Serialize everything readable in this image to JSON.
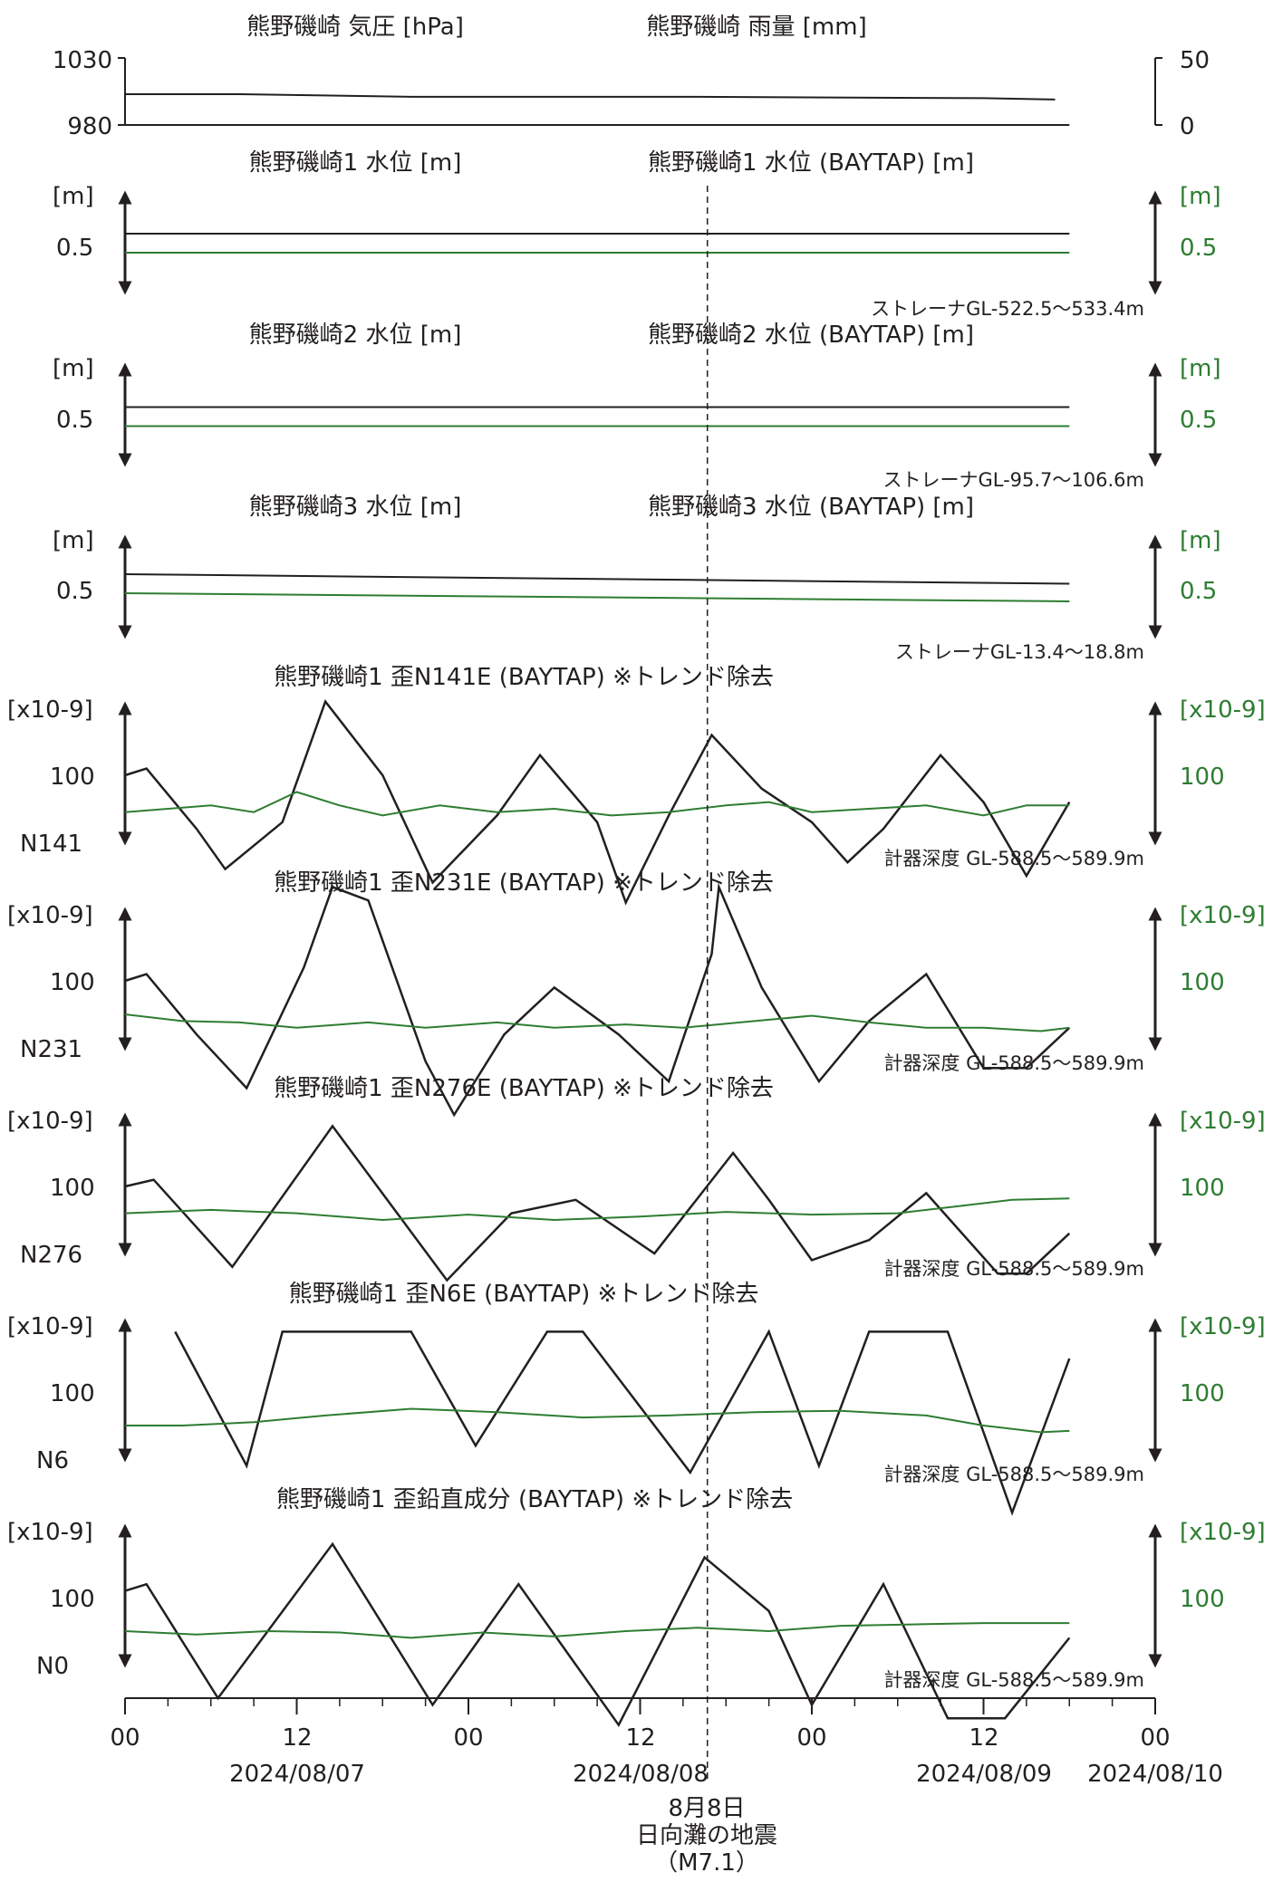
{
  "colors": {
    "black": "#231f20",
    "green": "#2e7d32"
  },
  "chart_data": [
    {
      "type": "line",
      "title": "熊野磯崎 気圧 [hPa]",
      "title_right": "熊野磯崎 雨量 [mm]",
      "left_ticks": [
        "1030",
        "980"
      ],
      "right_ticks": [
        "50",
        "0"
      ],
      "ylim_left": [
        980,
        1030
      ],
      "ylim_right": [
        0,
        50
      ],
      "series": [
        {
          "name": "熊野磯崎 気圧 [hPa]",
          "color": "#231f20",
          "x": [
            0,
            8,
            20,
            40,
            60,
            65
          ],
          "y": [
            1003,
            1003,
            1001,
            1001,
            1000,
            999
          ]
        },
        {
          "name": "熊野磯崎 雨量 [mm]",
          "color": "#231f20",
          "x": [
            0,
            66
          ],
          "y": [
            0,
            0
          ]
        }
      ]
    },
    {
      "type": "line",
      "title": "熊野磯崎1 水位 [m]",
      "title_right": "熊野磯崎1 水位 (BAYTAP) [m]",
      "unit": "[m]",
      "tick": "0.5",
      "note": "ストレーナGL-522.5～533.4m",
      "series": [
        {
          "color": "#231f20",
          "x": [
            0,
            66
          ],
          "y": [
            0.6,
            0.6
          ]
        },
        {
          "color": "#2e7d32",
          "x": [
            0,
            66
          ],
          "y": [
            0.46,
            0.46
          ]
        }
      ]
    },
    {
      "type": "line",
      "title": "熊野磯崎2 水位 [m]",
      "title_right": "熊野磯崎2 水位 (BAYTAP) [m]",
      "unit": "[m]",
      "tick": "0.5",
      "note": "ストレーナGL-95.7～106.6m",
      "series": [
        {
          "color": "#231f20",
          "x": [
            0,
            66
          ],
          "y": [
            0.59,
            0.59
          ]
        },
        {
          "color": "#2e7d32",
          "x": [
            0,
            66
          ],
          "y": [
            0.45,
            0.45
          ]
        }
      ]
    },
    {
      "type": "line",
      "title": "熊野磯崎3 水位 [m]",
      "title_right": "熊野磯崎3 水位 (BAYTAP) [m]",
      "unit": "[m]",
      "tick": "0.5",
      "note": "ストレーナGL-13.4～18.8m",
      "series": [
        {
          "color": "#231f20",
          "x": [
            0,
            66
          ],
          "y": [
            0.62,
            0.55
          ]
        },
        {
          "color": "#2e7d32",
          "x": [
            0,
            66
          ],
          "y": [
            0.48,
            0.42
          ]
        }
      ]
    },
    {
      "type": "line",
      "title": "熊野磯崎1 歪N141E (BAYTAP) ※トレンド除去",
      "unit": "[x10-9]",
      "tick": "100",
      "component": "N141",
      "note": "計器深度 GL-588.5～589.9m",
      "series": [
        {
          "color": "#231f20",
          "x": [
            0,
            1.5,
            5,
            7,
            11,
            14,
            18,
            21.5,
            26,
            29,
            33,
            35,
            38,
            41,
            44.5,
            48,
            50.5,
            53,
            57,
            60,
            63,
            66
          ],
          "y": [
            100,
            110,
            20,
            -40,
            30,
            210,
            100,
            -60,
            40,
            130,
            30,
            -90,
            40,
            160,
            80,
            30,
            -30,
            20,
            130,
            60,
            -50,
            60
          ]
        },
        {
          "color": "#2e7d32",
          "x": [
            0,
            6,
            9,
            12,
            15,
            18,
            22,
            26,
            30,
            34,
            38,
            42,
            45,
            48,
            52,
            56,
            60,
            63,
            66
          ],
          "y": [
            45,
            55,
            45,
            75,
            55,
            40,
            55,
            45,
            50,
            40,
            45,
            55,
            60,
            45,
            50,
            55,
            40,
            55,
            55
          ]
        }
      ]
    },
    {
      "type": "line",
      "title": "熊野磯崎1 歪N231E (BAYTAP) ※トレンド除去",
      "unit": "[x10-9]",
      "tick": "100",
      "component": "N231",
      "note": "計器深度 GL-588.5～589.9m",
      "series": [
        {
          "color": "#231f20",
          "x": [
            0,
            1.5,
            5,
            8.5,
            12.5,
            14.5,
            15,
            17,
            21,
            23,
            26.5,
            30,
            34.5,
            38,
            41,
            41.5,
            44.5,
            48.5,
            52,
            56,
            60,
            63,
            66
          ],
          "y": [
            100,
            110,
            20,
            -60,
            120,
            240,
            null,
            220,
            -20,
            -100,
            20,
            90,
            20,
            -50,
            140,
            240,
            90,
            -50,
            40,
            110,
            -30,
            -30,
            30
          ]
        },
        {
          "color": "#2e7d32",
          "x": [
            0,
            4,
            8,
            12,
            17,
            21,
            26,
            30,
            35,
            39,
            44,
            48,
            52,
            56,
            60,
            64,
            66
          ],
          "y": [
            50,
            40,
            38,
            30,
            38,
            30,
            38,
            30,
            35,
            30,
            40,
            48,
            38,
            30,
            30,
            25,
            30
          ]
        }
      ]
    },
    {
      "type": "line",
      "title": "熊野磯崎1 歪N276E (BAYTAP) ※トレンド除去",
      "unit": "[x10-9]",
      "tick": "100",
      "component": "N276",
      "note": "計器深度 GL-588.5～589.9m",
      "series": [
        {
          "color": "#231f20",
          "x": [
            0,
            2,
            7.5,
            14.5,
            22.5,
            27,
            31.5,
            37,
            42.5,
            45,
            48,
            52,
            56,
            61,
            63,
            66
          ],
          "y": [
            100,
            110,
            -20,
            190,
            -40,
            60,
            80,
            0,
            150,
            80,
            -10,
            20,
            90,
            -30,
            -30,
            30
          ]
        },
        {
          "color": "#2e7d32",
          "x": [
            0,
            6,
            12,
            18,
            24,
            30,
            36,
            42,
            48,
            54,
            58,
            62,
            66
          ],
          "y": [
            60,
            65,
            60,
            50,
            58,
            50,
            55,
            62,
            58,
            60,
            70,
            80,
            82
          ]
        }
      ]
    },
    {
      "type": "line",
      "title": "熊野磯崎1 歪N6E (BAYTAP) ※トレンド除去",
      "unit": "[x10-9]",
      "tick": "100",
      "component": "N6",
      "note": "計器深度 GL-588.5～589.9m",
      "series": [
        {
          "color": "#231f20",
          "x": [
            3.5,
            8.5,
            11,
            20,
            24.5,
            29.5,
            32,
            39.5,
            45,
            48.5,
            52,
            57.5,
            62,
            66
          ],
          "y": [
            190,
            -10,
            190,
            190,
            20,
            190,
            190,
            -20,
            190,
            -10,
            190,
            190,
            -80,
            150
          ]
        },
        {
          "color": "#2e7d32",
          "x": [
            0,
            4,
            9,
            14,
            20,
            26,
            32,
            38,
            44,
            50,
            56,
            60,
            64,
            66
          ],
          "y": [
            50,
            50,
            55,
            65,
            75,
            70,
            62,
            65,
            70,
            72,
            65,
            50,
            40,
            42
          ]
        }
      ]
    },
    {
      "type": "line",
      "title": "熊野磯崎1 歪鉛直成分 (BAYTAP) ※トレンド除去",
      "unit": "[x10-9]",
      "tick": "100",
      "component": "N0",
      "note": "計器深度 GL-588.5～589.9m",
      "series": [
        {
          "color": "#231f20",
          "x": [
            0,
            1.5,
            6.5,
            14.5,
            21.5,
            27.5,
            34.5,
            40.5,
            45,
            48,
            53,
            57.5,
            61.5,
            66
          ],
          "y": [
            110,
            120,
            -50,
            180,
            -60,
            120,
            -90,
            160,
            80,
            -60,
            120,
            -80,
            -80,
            40
          ]
        },
        {
          "color": "#2e7d32",
          "x": [
            0,
            5,
            10,
            15,
            20,
            25,
            30,
            35,
            40,
            45,
            50,
            55,
            60,
            66
          ],
          "y": [
            50,
            45,
            50,
            48,
            40,
            48,
            42,
            50,
            55,
            50,
            58,
            60,
            62,
            62
          ]
        }
      ]
    }
  ],
  "x_axis": {
    "hour_labels": [
      "00",
      "12",
      "00",
      "12",
      "00",
      "12",
      "00"
    ],
    "date_labels": [
      "2024/08/07",
      "2024/08/08",
      "2024/08/09",
      "2024/08/10"
    ],
    "range_hours": [
      0,
      72
    ]
  },
  "event": {
    "line1": "8月8日",
    "line2": "日向灘の地震",
    "line3": "（M7.1）",
    "x_hours": 40.7
  }
}
